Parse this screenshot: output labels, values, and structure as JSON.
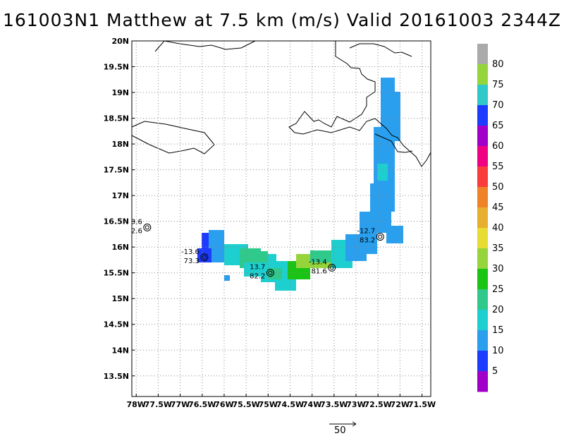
{
  "title": "161003N1 Matthew at 7.5 km (m/s) Valid 20161003 2344Z",
  "map": {
    "lon_ticks": [
      "78W",
      "77.5W",
      "77W",
      "76.5W",
      "76W",
      "75.5W",
      "75W",
      "74.5W",
      "74W",
      "73.5W",
      "73W",
      "72.5W",
      "72W",
      "71.5W"
    ],
    "lat_ticks": [
      "20N",
      "19.5N",
      "19N",
      "18.5N",
      "18N",
      "17.5N",
      "17N",
      "16.5N",
      "16N",
      "15.5N",
      "15N",
      "14.5N",
      "14N",
      "13.5N"
    ],
    "lon_range": [
      -78.1,
      -71.3
    ],
    "lat_range": [
      13.1,
      20.0
    ],
    "grid": true
  },
  "colorbar": {
    "labels": [
      "5",
      "10",
      "15",
      "20",
      "25",
      "30",
      "35",
      "40",
      "45",
      "50",
      "55",
      "60",
      "65",
      "70",
      "75",
      "80"
    ],
    "colors": [
      "#a000c8",
      "#1e3cff",
      "#2a9fee",
      "#1ecfcf",
      "#2fc98c",
      "#19c414",
      "#96d43c",
      "#e6dc32",
      "#e6af2d",
      "#f08228",
      "#fa3c3c",
      "#f00082",
      "#a000c8",
      "#1e3cff",
      "#2fc9c9",
      "#96d43c",
      "#aaaaaa"
    ]
  },
  "storm_labels": [
    {
      "lon": -77.75,
      "lat": 16.38,
      "top": "3.6",
      "bottom": "2.6"
    },
    {
      "lon": -76.45,
      "lat": 15.8,
      "top": "-13.6",
      "bottom": "73.3"
    },
    {
      "lon": -74.95,
      "lat": 15.5,
      "top": "13.7",
      "bottom": "82.2"
    },
    {
      "lon": -73.55,
      "lat": 15.6,
      "top": "-13.4",
      "bottom": "81.6"
    },
    {
      "lon": -72.45,
      "lat": 16.2,
      "top": "-12.7",
      "bottom": "83.2"
    }
  ],
  "scale_arrow": {
    "label": "50"
  }
}
